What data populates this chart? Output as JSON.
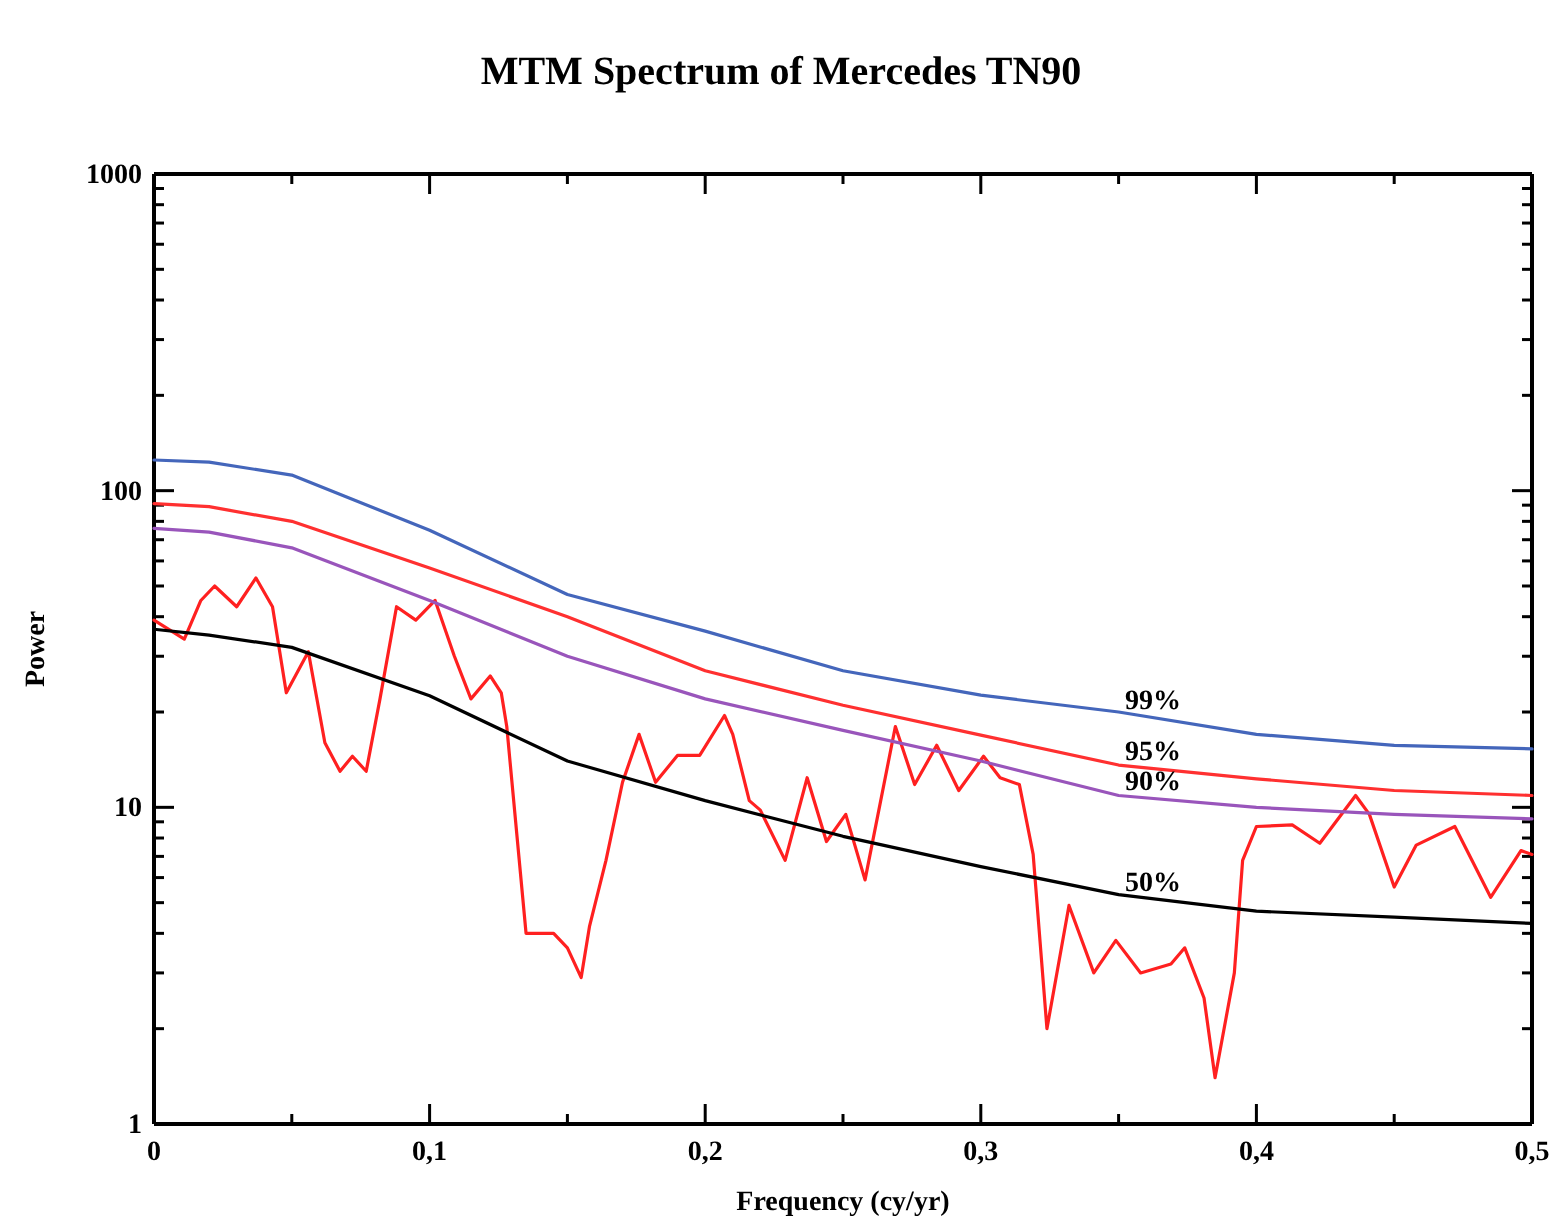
{
  "chart_data": {
    "type": "line",
    "title": "MTM Spectrum of Mercedes TN90",
    "xlabel": "Frequency (cy/yr)",
    "ylabel": "Power",
    "log": "y",
    "xlim": [
      0,
      0.5
    ],
    "ylim": [
      1,
      1000
    ],
    "xticks": [
      {
        "value": 0,
        "label": "0"
      },
      {
        "value": 0.05,
        "label": null
      },
      {
        "value": 0.1,
        "label": "0,1"
      },
      {
        "value": 0.15,
        "label": null
      },
      {
        "value": 0.2,
        "label": "0,2"
      },
      {
        "value": 0.25,
        "label": null
      },
      {
        "value": 0.3,
        "label": "0,3"
      },
      {
        "value": 0.35,
        "label": null
      },
      {
        "value": 0.4,
        "label": "0,4"
      },
      {
        "value": 0.45,
        "label": null
      },
      {
        "value": 0.5,
        "label": "0,5"
      }
    ],
    "yticks": [
      1,
      {
        "value": 2,
        "label": null
      },
      {
        "value": 3,
        "label": null
      },
      {
        "value": 4,
        "label": null
      },
      {
        "value": 5,
        "label": null
      },
      {
        "value": 6,
        "label": null
      },
      {
        "value": 7,
        "label": null
      },
      {
        "value": 8,
        "label": null
      },
      {
        "value": 9,
        "label": null
      },
      10,
      {
        "value": 20,
        "label": null
      },
      {
        "value": 30,
        "label": null
      },
      {
        "value": 40,
        "label": null
      },
      {
        "value": 50,
        "label": null
      },
      {
        "value": 60,
        "label": null
      },
      {
        "value": 70,
        "label": null
      },
      {
        "value": 80,
        "label": null
      },
      {
        "value": 90,
        "label": null
      },
      100,
      {
        "value": 200,
        "label": null
      },
      {
        "value": 300,
        "label": null
      },
      {
        "value": 400,
        "label": null
      },
      {
        "value": 500,
        "label": null
      },
      {
        "value": 600,
        "label": null
      },
      {
        "value": 700,
        "label": null
      },
      {
        "value": 800,
        "label": null
      },
      {
        "value": 900,
        "label": null
      },
      1000
    ],
    "grid": false,
    "legend": false,
    "marker": "none",
    "line_style": "solid",
    "series": [
      {
        "color": "#ff2020",
        "x": [
          0,
          0.011,
          0.017,
          0.022,
          0.03,
          0.037,
          0.043,
          0.048,
          0.056,
          0.062,
          0.0675,
          0.072,
          0.077,
          0.082,
          0.088,
          0.095,
          0.102,
          0.109,
          0.115,
          0.122,
          0.126,
          0.128,
          0.135,
          0.145,
          0.15,
          0.155,
          0.158,
          0.164,
          0.17,
          0.176,
          0.182,
          0.19,
          0.198,
          0.207,
          0.21,
          0.216,
          0.22,
          0.229,
          0.237,
          0.244,
          0.251,
          0.258,
          0.269,
          0.276,
          0.284,
          0.292,
          0.301,
          0.307,
          0.314,
          0.319,
          0.324,
          0.332,
          0.341,
          0.349,
          0.358,
          0.369,
          0.374,
          0.381,
          0.385,
          0.392,
          0.395,
          0.4,
          0.413,
          0.423,
          0.436,
          0.441,
          0.45,
          0.458,
          0.472,
          0.485,
          0.496,
          0.5
        ],
        "values": [
          39,
          34,
          45,
          50,
          43,
          53,
          43,
          23,
          31,
          16,
          13,
          14.5,
          13,
          22,
          43,
          39,
          45,
          30,
          22,
          26,
          23,
          18,
          4,
          4,
          3.6,
          2.9,
          4.2,
          6.8,
          12,
          17,
          12,
          14.6,
          14.6,
          19.5,
          17,
          10.5,
          9.8,
          6.8,
          12.4,
          7.8,
          9.5,
          5.9,
          18,
          11.8,
          15.7,
          11.3,
          14.5,
          12.4,
          11.8,
          7.1,
          2,
          4.9,
          3,
          3.8,
          3,
          3.2,
          3.6,
          2.5,
          1.4,
          3,
          6.8,
          8.7,
          8.8,
          7.7,
          10.9,
          9.5,
          5.6,
          7.6,
          8.7,
          5.2,
          7.3,
          7.1
        ]
      },
      {
        "name": "99%",
        "color": "#4466bb",
        "x": [
          0,
          0.02,
          0.05,
          0.1,
          0.15,
          0.2,
          0.25,
          0.3,
          0.35,
          0.4,
          0.45,
          0.5
        ],
        "values": [
          125,
          123,
          112,
          75,
          47,
          36,
          27,
          22.6,
          20,
          17,
          15.7,
          15.3
        ]
      },
      {
        "name": "95%",
        "color": "#ff3030",
        "x": [
          0,
          0.02,
          0.05,
          0.1,
          0.15,
          0.2,
          0.25,
          0.3,
          0.35,
          0.4,
          0.45,
          0.5
        ],
        "values": [
          91,
          89,
          80,
          57,
          40,
          27,
          21,
          16.9,
          13.6,
          12.3,
          11.3,
          10.9
        ]
      },
      {
        "name": "90%",
        "color": "#9955bb",
        "x": [
          0,
          0.02,
          0.05,
          0.1,
          0.15,
          0.2,
          0.25,
          0.3,
          0.35,
          0.4,
          0.45,
          0.5
        ],
        "values": [
          76,
          74,
          66,
          45,
          30,
          22,
          17.5,
          14,
          10.9,
          10,
          9.5,
          9.2
        ]
      },
      {
        "name": "50%",
        "color": "#000000",
        "x": [
          0,
          0.02,
          0.05,
          0.1,
          0.15,
          0.2,
          0.25,
          0.3,
          0.35,
          0.4,
          0.45,
          0.5
        ],
        "values": [
          36.5,
          35,
          32,
          22.5,
          14,
          10.5,
          8.1,
          6.5,
          5.3,
          4.7,
          4.5,
          4.3
        ]
      }
    ]
  }
}
